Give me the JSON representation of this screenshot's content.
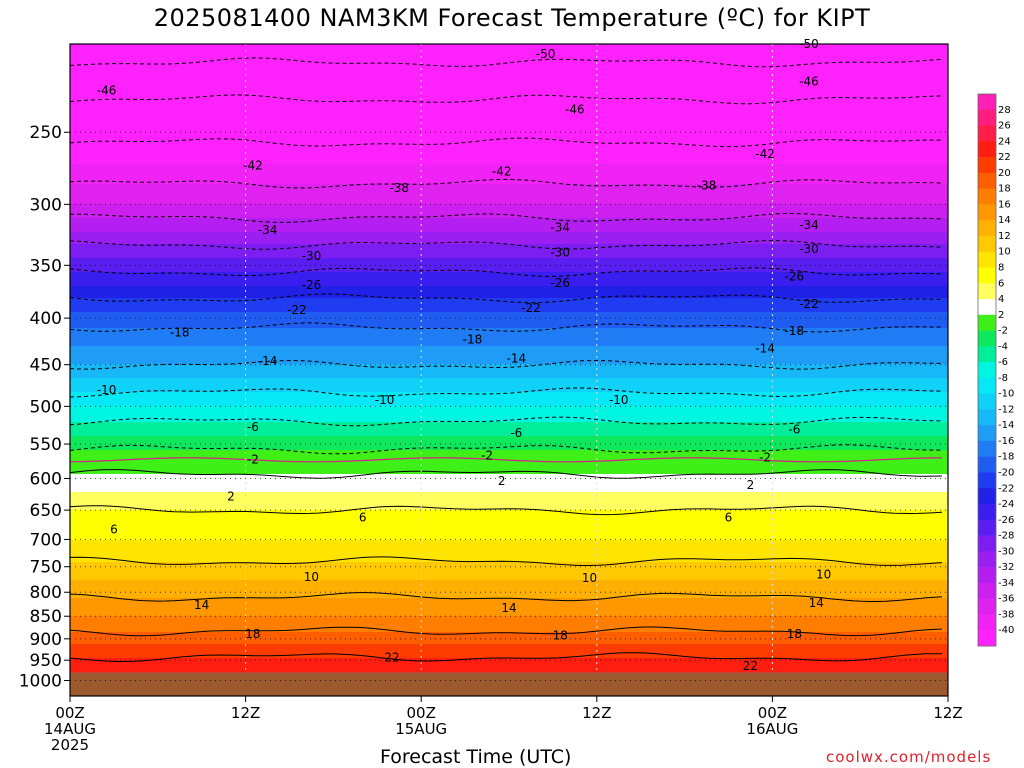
{
  "chart_data": {
    "type": "heatmap",
    "title": "2025081400 NAM3KM Forecast Temperature (ºC) for KIPT",
    "xlabel": "Forecast Time (UTC)",
    "ylabel": "",
    "x_range_hours": [
      0,
      60
    ],
    "y_range_hpa": [
      200,
      1040
    ],
    "y_scale": "log",
    "grid": true,
    "x_ticks": [
      {
        "hour": 0,
        "line1": "00Z",
        "line2": "14AUG",
        "line3": "2025"
      },
      {
        "hour": 12,
        "line1": "12Z",
        "line2": "",
        "line3": ""
      },
      {
        "hour": 24,
        "line1": "00Z",
        "line2": "15AUG",
        "line3": ""
      },
      {
        "hour": 36,
        "line1": "12Z",
        "line2": "",
        "line3": ""
      },
      {
        "hour": 48,
        "line1": "00Z",
        "line2": "16AUG",
        "line3": ""
      },
      {
        "hour": 60,
        "line1": "12Z",
        "line2": "",
        "line3": ""
      }
    ],
    "y_ticks": [
      {
        "p": 250,
        "label": "250"
      },
      {
        "p": 300,
        "label": "300"
      },
      {
        "p": 350,
        "label": "350"
      },
      {
        "p": 400,
        "label": "400"
      },
      {
        "p": 450,
        "label": "450"
      },
      {
        "p": 500,
        "label": "500"
      },
      {
        "p": 550,
        "label": "550"
      },
      {
        "p": 600,
        "label": "600"
      },
      {
        "p": 650,
        "label": "650"
      },
      {
        "p": 700,
        "label": "700"
      },
      {
        "p": 750,
        "label": "750"
      },
      {
        "p": 800,
        "label": "800"
      },
      {
        "p": 850,
        "label": "850"
      },
      {
        "p": 900,
        "label": "900"
      },
      {
        "p": 950,
        "label": "950"
      },
      {
        "p": 1000,
        "label": "1000"
      }
    ],
    "surface_pressure_hpa": 980,
    "temperature_profile": [
      {
        "p": 200,
        "t": -52
      },
      {
        "p": 230,
        "t": -46
      },
      {
        "p": 250,
        "t": -43
      },
      {
        "p": 300,
        "t": -36
      },
      {
        "p": 350,
        "t": -27
      },
      {
        "p": 400,
        "t": -19
      },
      {
        "p": 450,
        "t": -14
      },
      {
        "p": 500,
        "t": -8
      },
      {
        "p": 550,
        "t": -3
      },
      {
        "p": 580,
        "t": 1
      },
      {
        "p": 600,
        "t": 2.5
      },
      {
        "p": 650,
        "t": 6
      },
      {
        "p": 700,
        "t": 8
      },
      {
        "p": 750,
        "t": 10.5
      },
      {
        "p": 800,
        "t": 13.5
      },
      {
        "p": 850,
        "t": 16
      },
      {
        "p": 900,
        "t": 19
      },
      {
        "p": 950,
        "t": 22.5
      },
      {
        "p": 980,
        "t": 24
      }
    ],
    "contour_interval_c": 4,
    "contour_labels": [
      {
        "value": "-50",
        "hour": 32.5,
        "p": 205
      },
      {
        "value": "-50",
        "hour": 50.5,
        "p": 200
      },
      {
        "value": "-46",
        "hour": 2.5,
        "p": 225
      },
      {
        "value": "-46",
        "hour": 34.5,
        "p": 236
      },
      {
        "value": "-46",
        "hour": 50.5,
        "p": 220
      },
      {
        "value": "-42",
        "hour": 12.5,
        "p": 272
      },
      {
        "value": "-42",
        "hour": 29.5,
        "p": 276
      },
      {
        "value": "-42",
        "hour": 47.5,
        "p": 264
      },
      {
        "value": "-38",
        "hour": 22.5,
        "p": 288
      },
      {
        "value": "-38",
        "hour": 43.5,
        "p": 286
      },
      {
        "value": "-34",
        "hour": 13.5,
        "p": 320
      },
      {
        "value": "-34",
        "hour": 33.5,
        "p": 318
      },
      {
        "value": "-34",
        "hour": 50.5,
        "p": 316
      },
      {
        "value": "-30",
        "hour": 16.5,
        "p": 342
      },
      {
        "value": "-30",
        "hour": 33.5,
        "p": 339
      },
      {
        "value": "-30",
        "hour": 50.5,
        "p": 336
      },
      {
        "value": "-26",
        "hour": 16.5,
        "p": 368
      },
      {
        "value": "-26",
        "hour": 33.5,
        "p": 366
      },
      {
        "value": "-26",
        "hour": 49.5,
        "p": 360
      },
      {
        "value": "-22",
        "hour": 15.5,
        "p": 392
      },
      {
        "value": "-22",
        "hour": 31.5,
        "p": 390
      },
      {
        "value": "-22",
        "hour": 50.5,
        "p": 386
      },
      {
        "value": "-18",
        "hour": 7.5,
        "p": 415
      },
      {
        "value": "-18",
        "hour": 27.5,
        "p": 422
      },
      {
        "value": "-18",
        "hour": 49.5,
        "p": 413
      },
      {
        "value": "-14",
        "hour": 13.5,
        "p": 446
      },
      {
        "value": "-14",
        "hour": 30.5,
        "p": 443
      },
      {
        "value": "-14",
        "hour": 47.5,
        "p": 432
      },
      {
        "value": "-10",
        "hour": 2.5,
        "p": 480
      },
      {
        "value": "-10",
        "hour": 21.5,
        "p": 492
      },
      {
        "value": "-10",
        "hour": 37.5,
        "p": 492
      },
      {
        "value": "-6",
        "hour": 12.5,
        "p": 527
      },
      {
        "value": "-6",
        "hour": 30.5,
        "p": 535
      },
      {
        "value": "-6",
        "hour": 49.5,
        "p": 530
      },
      {
        "value": "-2",
        "hour": 12.5,
        "p": 572
      },
      {
        "value": "-2",
        "hour": 28.5,
        "p": 566
      },
      {
        "value": "-2",
        "hour": 47.5,
        "p": 569
      },
      {
        "value": "2",
        "hour": 11,
        "p": 628
      },
      {
        "value": "2",
        "hour": 29.5,
        "p": 604
      },
      {
        "value": "2",
        "hour": 46.5,
        "p": 610
      },
      {
        "value": "6",
        "hour": 3,
        "p": 683
      },
      {
        "value": "6",
        "hour": 20,
        "p": 662
      },
      {
        "value": "6",
        "hour": 45,
        "p": 662
      },
      {
        "value": "10",
        "hour": 16.5,
        "p": 770
      },
      {
        "value": "10",
        "hour": 35.5,
        "p": 772
      },
      {
        "value": "10",
        "hour": 51.5,
        "p": 765
      },
      {
        "value": "14",
        "hour": 9,
        "p": 826
      },
      {
        "value": "14",
        "hour": 30,
        "p": 832
      },
      {
        "value": "14",
        "hour": 51,
        "p": 822
      },
      {
        "value": "18",
        "hour": 12.5,
        "p": 889
      },
      {
        "value": "18",
        "hour": 33.5,
        "p": 893
      },
      {
        "value": "18",
        "hour": 49.5,
        "p": 889
      },
      {
        "value": "22",
        "hour": 22,
        "p": 944
      },
      {
        "value": "22",
        "hour": 46.5,
        "p": 964
      }
    ],
    "colorbar": {
      "labels": [
        "28",
        "26",
        "24",
        "22",
        "20",
        "18",
        "16",
        "14",
        "12",
        "10",
        "8",
        "6",
        "4",
        "2",
        "-2",
        "-4",
        "-6",
        "-8",
        "-10",
        "-12",
        "-14",
        "-16",
        "-18",
        "-20",
        "-22",
        "-24",
        "-26",
        "-28",
        "-30",
        "-32",
        "-34",
        "-36",
        "-38",
        "-40"
      ],
      "levels": [
        -40,
        -38,
        -36,
        -34,
        -32,
        -30,
        -28,
        -26,
        -24,
        -22,
        -20,
        -18,
        -16,
        -14,
        -12,
        -10,
        -8,
        -6,
        -4,
        -2,
        2,
        4,
        6,
        8,
        10,
        12,
        14,
        16,
        18,
        20,
        22,
        24,
        26,
        28
      ],
      "colors": [
        "#ff22ff",
        "#f122f5",
        "#df22f0",
        "#cc1ff0",
        "#b51ef0",
        "#9b1ef2",
        "#7c1ef2",
        "#5a1ef0",
        "#3a1ef0",
        "#2020e6",
        "#1f3cf0",
        "#1e5cf2",
        "#1f7cf4",
        "#1e9cf6",
        "#16b8f8",
        "#10d2f8",
        "#06e8f6",
        "#00f6e0",
        "#00ee9c",
        "#0ee85c",
        "#3ef018",
        "#ffffff",
        "#ffff60",
        "#ffff00",
        "#ffe400",
        "#ffc800",
        "#ffb000",
        "#ff9800",
        "#ff7e00",
        "#ff5e00",
        "#ff3c00",
        "#ff1e10",
        "#ff1e48",
        "#ff1e80",
        "#ff20b8"
      ]
    }
  },
  "watermark": "coolwx.com/models"
}
